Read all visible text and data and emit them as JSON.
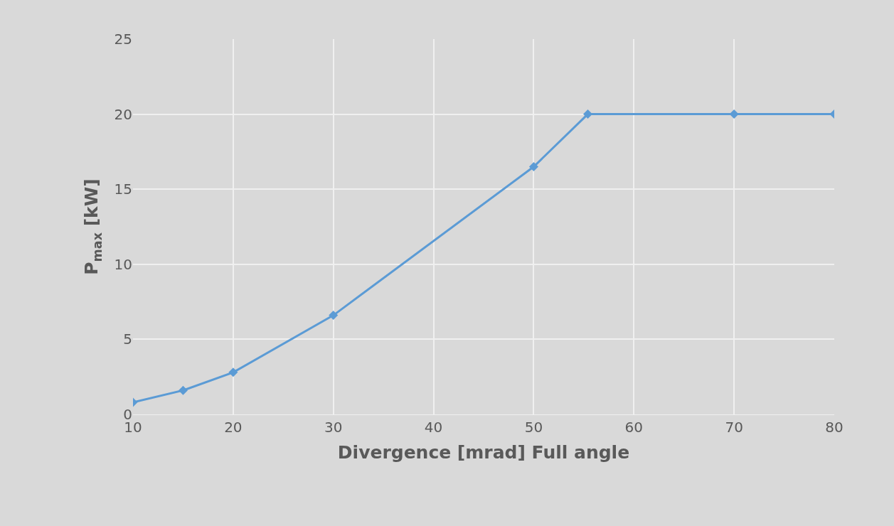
{
  "chart_data": {
    "type": "line",
    "xlabel": "Divergence [mrad] Full angle",
    "ylabel": "P$_{max}$ [kW]",
    "x": [
      10,
      15,
      20,
      30,
      50,
      55.4,
      70,
      80
    ],
    "series": [
      {
        "color": "#5b9bd5",
        "values": [
          0.8,
          1.6,
          2.8,
          6.6,
          16.5,
          20,
          20,
          20
        ]
      }
    ],
    "xlim": [
      10,
      80
    ],
    "xticks": [
      10,
      20,
      30,
      40,
      50,
      60,
      70,
      80
    ],
    "ylim": [
      0,
      25
    ],
    "yticks": [
      0,
      5,
      10,
      15,
      20,
      25
    ],
    "grid": true,
    "marker": "diamond",
    "line_style": "solid"
  }
}
